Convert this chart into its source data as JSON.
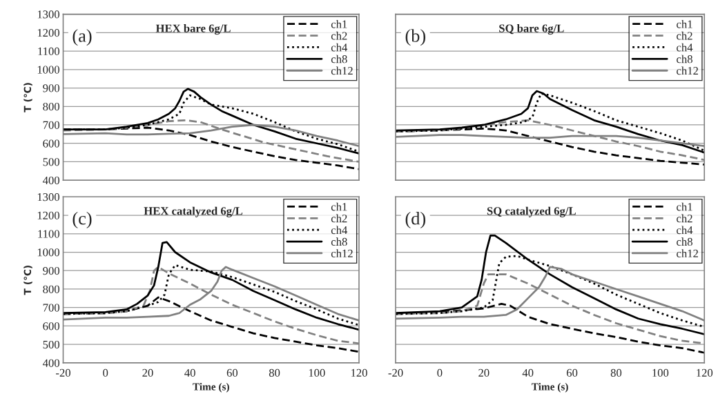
{
  "chart_data": [
    {
      "type": "line",
      "title": "HEX bare 6g/L",
      "ylabel": "T (℃)",
      "annotations": [
        "(a)"
      ],
      "xlim": [
        -20,
        120
      ],
      "ylim": [
        400,
        1300
      ],
      "xticks": [
        -20,
        0,
        20,
        40,
        60,
        80,
        100,
        120
      ],
      "yticks": [
        400,
        500,
        600,
        700,
        800,
        900,
        1000,
        1100,
        1200,
        1300
      ],
      "tick_labels": "y",
      "grid": "y",
      "legend": "top right",
      "series": [
        {
          "name": "ch1",
          "color": "#000000",
          "line_style": "dashed",
          "x": [
            -20,
            0,
            10,
            20,
            30,
            40,
            50,
            60,
            70,
            80,
            90,
            100,
            110,
            120
          ],
          "values": [
            675,
            675,
            680,
            685,
            670,
            645,
            610,
            580,
            555,
            530,
            510,
            495,
            480,
            460
          ]
        },
        {
          "name": "ch2",
          "color": "#808080",
          "line_style": "dashed",
          "x": [
            -20,
            0,
            10,
            20,
            30,
            38,
            45,
            55,
            65,
            75,
            85,
            95,
            105,
            120
          ],
          "values": [
            670,
            675,
            685,
            700,
            720,
            725,
            715,
            675,
            640,
            605,
            580,
            555,
            530,
            500
          ]
        },
        {
          "name": "ch4",
          "color": "#000000",
          "line_style": "dotted",
          "x": [
            -20,
            0,
            10,
            20,
            30,
            35,
            37,
            40,
            45,
            50,
            60,
            70,
            80,
            90,
            100,
            110,
            120
          ],
          "values": [
            675,
            675,
            685,
            700,
            730,
            760,
            820,
            860,
            840,
            810,
            790,
            760,
            715,
            665,
            625,
            595,
            555
          ]
        },
        {
          "name": "ch8",
          "color": "#000000",
          "line_style": "solid",
          "x": [
            -20,
            0,
            10,
            20,
            25,
            30,
            33,
            35,
            37,
            39,
            42,
            45,
            50,
            55,
            60,
            70,
            80,
            90,
            100,
            110,
            120
          ],
          "values": [
            675,
            675,
            690,
            710,
            730,
            760,
            790,
            830,
            880,
            895,
            880,
            850,
            810,
            775,
            750,
            700,
            665,
            625,
            600,
            575,
            545
          ]
        },
        {
          "name": "ch12",
          "color": "#808080",
          "line_style": "solid",
          "x": [
            -20,
            0,
            10,
            20,
            30,
            40,
            50,
            60,
            70,
            80,
            90,
            100,
            110,
            120
          ],
          "values": [
            650,
            655,
            648,
            648,
            652,
            655,
            670,
            690,
            700,
            690,
            670,
            640,
            615,
            585
          ]
        }
      ]
    },
    {
      "type": "line",
      "title": "SQ bare 6g/L",
      "annotations": [
        "(b)"
      ],
      "xlim": [
        -20,
        120
      ],
      "ylim": [
        400,
        1300
      ],
      "xticks": [
        -20,
        0,
        20,
        40,
        60,
        80,
        100,
        120
      ],
      "yticks": [
        400,
        500,
        600,
        700,
        800,
        900,
        1000,
        1100,
        1200,
        1300
      ],
      "tick_labels": false,
      "grid": "y",
      "legend": "top right",
      "series": [
        {
          "name": "ch1",
          "color": "#000000",
          "line_style": "dashed",
          "x": [
            -20,
            0,
            10,
            20,
            30,
            40,
            50,
            60,
            70,
            80,
            90,
            100,
            110,
            120
          ],
          "values": [
            665,
            670,
            675,
            680,
            670,
            640,
            610,
            580,
            555,
            535,
            520,
            505,
            495,
            485
          ]
        },
        {
          "name": "ch2",
          "color": "#808080",
          "line_style": "dashed",
          "x": [
            -20,
            0,
            10,
            20,
            30,
            40,
            50,
            60,
            70,
            80,
            90,
            100,
            110,
            120
          ],
          "values": [
            665,
            670,
            680,
            700,
            715,
            725,
            700,
            670,
            640,
            610,
            585,
            555,
            535,
            510
          ]
        },
        {
          "name": "ch4",
          "color": "#000000",
          "line_style": "dotted",
          "x": [
            -20,
            0,
            10,
            20,
            30,
            38,
            42,
            44,
            46,
            50,
            60,
            70,
            80,
            90,
            100,
            110,
            120
          ],
          "values": [
            665,
            670,
            680,
            690,
            700,
            715,
            740,
            820,
            870,
            860,
            820,
            775,
            725,
            690,
            655,
            615,
            560
          ]
        },
        {
          "name": "ch8",
          "color": "#000000",
          "line_style": "solid",
          "x": [
            -20,
            0,
            10,
            20,
            30,
            37,
            40,
            42,
            44,
            47,
            50,
            60,
            70,
            80,
            90,
            100,
            110,
            120
          ],
          "values": [
            670,
            675,
            685,
            700,
            730,
            760,
            790,
            860,
            883,
            870,
            840,
            780,
            725,
            690,
            650,
            615,
            590,
            550
          ]
        },
        {
          "name": "ch12",
          "color": "#808080",
          "line_style": "solid",
          "x": [
            -20,
            0,
            10,
            20,
            30,
            40,
            50,
            60,
            70,
            80,
            90,
            100,
            110,
            120
          ],
          "values": [
            635,
            645,
            645,
            640,
            635,
            630,
            630,
            640,
            640,
            640,
            630,
            615,
            600,
            585
          ]
        }
      ]
    },
    {
      "type": "line",
      "title": "HEX catalyzed 6g/L",
      "xlabel": "Time (s)",
      "ylabel": "T (℃)",
      "annotations": [
        "(c)"
      ],
      "xlim": [
        -20,
        120
      ],
      "ylim": [
        400,
        1300
      ],
      "xticks": [
        -20,
        0,
        20,
        40,
        60,
        80,
        100,
        120
      ],
      "yticks": [
        400,
        500,
        600,
        700,
        800,
        900,
        1000,
        1100,
        1200,
        1300
      ],
      "grid": "y",
      "legend": "top right",
      "series": [
        {
          "name": "ch1",
          "color": "#000000",
          "line_style": "dashed",
          "x": [
            -20,
            0,
            10,
            20,
            25,
            30,
            40,
            50,
            60,
            70,
            80,
            90,
            100,
            110,
            120
          ],
          "values": [
            665,
            670,
            680,
            710,
            755,
            735,
            680,
            630,
            595,
            560,
            535,
            515,
            495,
            480,
            460
          ]
        },
        {
          "name": "ch2",
          "color": "#808080",
          "line_style": "dashed",
          "x": [
            -20,
            0,
            10,
            18,
            21,
            23,
            25,
            30,
            40,
            50,
            60,
            70,
            80,
            90,
            100,
            110,
            120
          ],
          "values": [
            665,
            670,
            680,
            710,
            790,
            900,
            920,
            885,
            830,
            770,
            715,
            670,
            625,
            585,
            550,
            520,
            505
          ]
        },
        {
          "name": "ch4",
          "color": "#000000",
          "line_style": "dotted",
          "x": [
            -20,
            0,
            10,
            20,
            25,
            28,
            30,
            33,
            40,
            50,
            60,
            70,
            80,
            90,
            100,
            110,
            120
          ],
          "values": [
            665,
            670,
            680,
            710,
            730,
            770,
            880,
            930,
            905,
            895,
            865,
            825,
            785,
            735,
            690,
            640,
            605
          ]
        },
        {
          "name": "ch8",
          "color": "#000000",
          "line_style": "solid",
          "x": [
            -20,
            0,
            10,
            15,
            20,
            23,
            25,
            27,
            29,
            33,
            40,
            50,
            60,
            70,
            80,
            90,
            100,
            110,
            120
          ],
          "values": [
            670,
            675,
            690,
            720,
            765,
            820,
            920,
            1050,
            1055,
            1000,
            945,
            890,
            850,
            790,
            740,
            690,
            645,
            610,
            580
          ]
        },
        {
          "name": "ch12",
          "color": "#808080",
          "line_style": "solid",
          "x": [
            -20,
            0,
            10,
            20,
            30,
            35,
            40,
            45,
            50,
            53,
            55,
            57,
            60,
            70,
            80,
            90,
            100,
            110,
            120
          ],
          "values": [
            635,
            645,
            645,
            650,
            655,
            670,
            715,
            745,
            790,
            840,
            900,
            920,
            905,
            860,
            815,
            765,
            715,
            665,
            630
          ]
        }
      ]
    },
    {
      "type": "line",
      "title": "SQ catalyzed 6g/L",
      "xlabel": "Time (s)",
      "annotations": [
        "(d)"
      ],
      "xlim": [
        -20,
        120
      ],
      "ylim": [
        400,
        1300
      ],
      "xticks": [
        -20,
        0,
        20,
        40,
        60,
        80,
        100,
        120
      ],
      "yticks": [
        400,
        500,
        600,
        700,
        800,
        900,
        1000,
        1100,
        1200,
        1300
      ],
      "tick_labels": "x",
      "grid": "y",
      "legend": "top right",
      "series": [
        {
          "name": "ch1",
          "color": "#000000",
          "line_style": "dashed",
          "x": [
            -20,
            0,
            10,
            20,
            28,
            32,
            40,
            50,
            60,
            70,
            80,
            90,
            100,
            110,
            120
          ],
          "values": [
            665,
            675,
            685,
            695,
            720,
            710,
            650,
            610,
            585,
            560,
            540,
            515,
            495,
            480,
            455
          ]
        },
        {
          "name": "ch2",
          "color": "#808080",
          "line_style": "dashed",
          "x": [
            -20,
            0,
            10,
            17,
            20,
            22,
            30,
            40,
            50,
            60,
            70,
            80,
            90,
            100,
            110,
            120
          ],
          "values": [
            665,
            670,
            680,
            710,
            830,
            880,
            880,
            830,
            770,
            710,
            660,
            615,
            580,
            545,
            520,
            505
          ]
        },
        {
          "name": "ch4",
          "color": "#000000",
          "line_style": "dotted",
          "x": [
            -20,
            0,
            10,
            20,
            24,
            27,
            30,
            35,
            40,
            50,
            60,
            70,
            80,
            90,
            100,
            110,
            120
          ],
          "values": [
            665,
            670,
            680,
            700,
            740,
            940,
            975,
            980,
            960,
            925,
            880,
            830,
            770,
            720,
            670,
            630,
            595
          ]
        },
        {
          "name": "ch8",
          "color": "#000000",
          "line_style": "solid",
          "x": [
            -20,
            0,
            10,
            17,
            19,
            21,
            23,
            25,
            30,
            40,
            50,
            60,
            70,
            80,
            90,
            100,
            110,
            120
          ],
          "values": [
            670,
            680,
            700,
            760,
            850,
            1000,
            1090,
            1090,
            1050,
            960,
            880,
            810,
            750,
            690,
            640,
            610,
            585,
            555
          ]
        },
        {
          "name": "ch12",
          "color": "#808080",
          "line_style": "solid",
          "x": [
            -20,
            0,
            10,
            20,
            30,
            35,
            40,
            45,
            48,
            50,
            55,
            60,
            70,
            80,
            90,
            100,
            110,
            120
          ],
          "values": [
            640,
            645,
            650,
            650,
            660,
            690,
            750,
            810,
            870,
            920,
            910,
            880,
            840,
            800,
            760,
            720,
            680,
            630
          ]
        }
      ]
    }
  ]
}
